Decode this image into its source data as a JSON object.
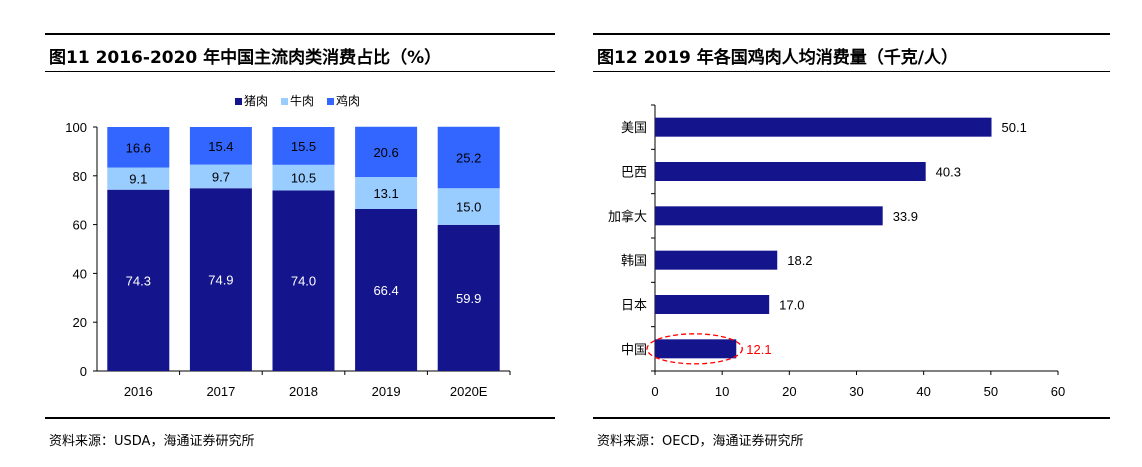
{
  "colors": {
    "pork": "#14148c",
    "beef": "#99ccff",
    "chicken": "#3366ff",
    "bar": "#14148c",
    "highlight": "#ff0000"
  },
  "left": {
    "title": "图11 2016-2020 年中国主流肉类消费占比（%）",
    "source": "资料来源：USDA，海通证券研究所"
  },
  "right": {
    "title": "图12 2019 年各国鸡肉人均消费量（千克/人）",
    "source": "资料来源：OECD，海通证券研究所"
  },
  "chart_data": [
    {
      "type": "bar",
      "stacked": true,
      "title": "图11 2016-2020 年中国主流肉类消费占比（%）",
      "categories": [
        "2016",
        "2017",
        "2018",
        "2019",
        "2020E"
      ],
      "series": [
        {
          "name": "猪肉",
          "color": "#14148c",
          "values": [
            74.3,
            74.9,
            74.0,
            66.4,
            59.9
          ]
        },
        {
          "name": "牛肉",
          "color": "#99ccff",
          "values": [
            9.1,
            9.7,
            10.5,
            13.1,
            15.0
          ]
        },
        {
          "name": "鸡肉",
          "color": "#3366ff",
          "values": [
            16.6,
            15.4,
            15.5,
            20.6,
            25.2
          ]
        }
      ],
      "ylim": [
        0,
        100
      ],
      "yticks": [
        0,
        20,
        40,
        60,
        80,
        100
      ],
      "legend": "top-center",
      "grid": false
    },
    {
      "type": "bar",
      "orientation": "horizontal",
      "title": "图12 2019 年各国鸡肉人均消费量（千克/人）",
      "categories": [
        "美国",
        "巴西",
        "加拿大",
        "韩国",
        "日本",
        "中国"
      ],
      "values": [
        50.1,
        40.3,
        33.9,
        18.2,
        17.0,
        12.1
      ],
      "highlight": "中国",
      "xlim": [
        0,
        60
      ],
      "xticks": [
        0,
        10,
        20,
        30,
        40,
        50,
        60
      ],
      "grid": false
    }
  ]
}
